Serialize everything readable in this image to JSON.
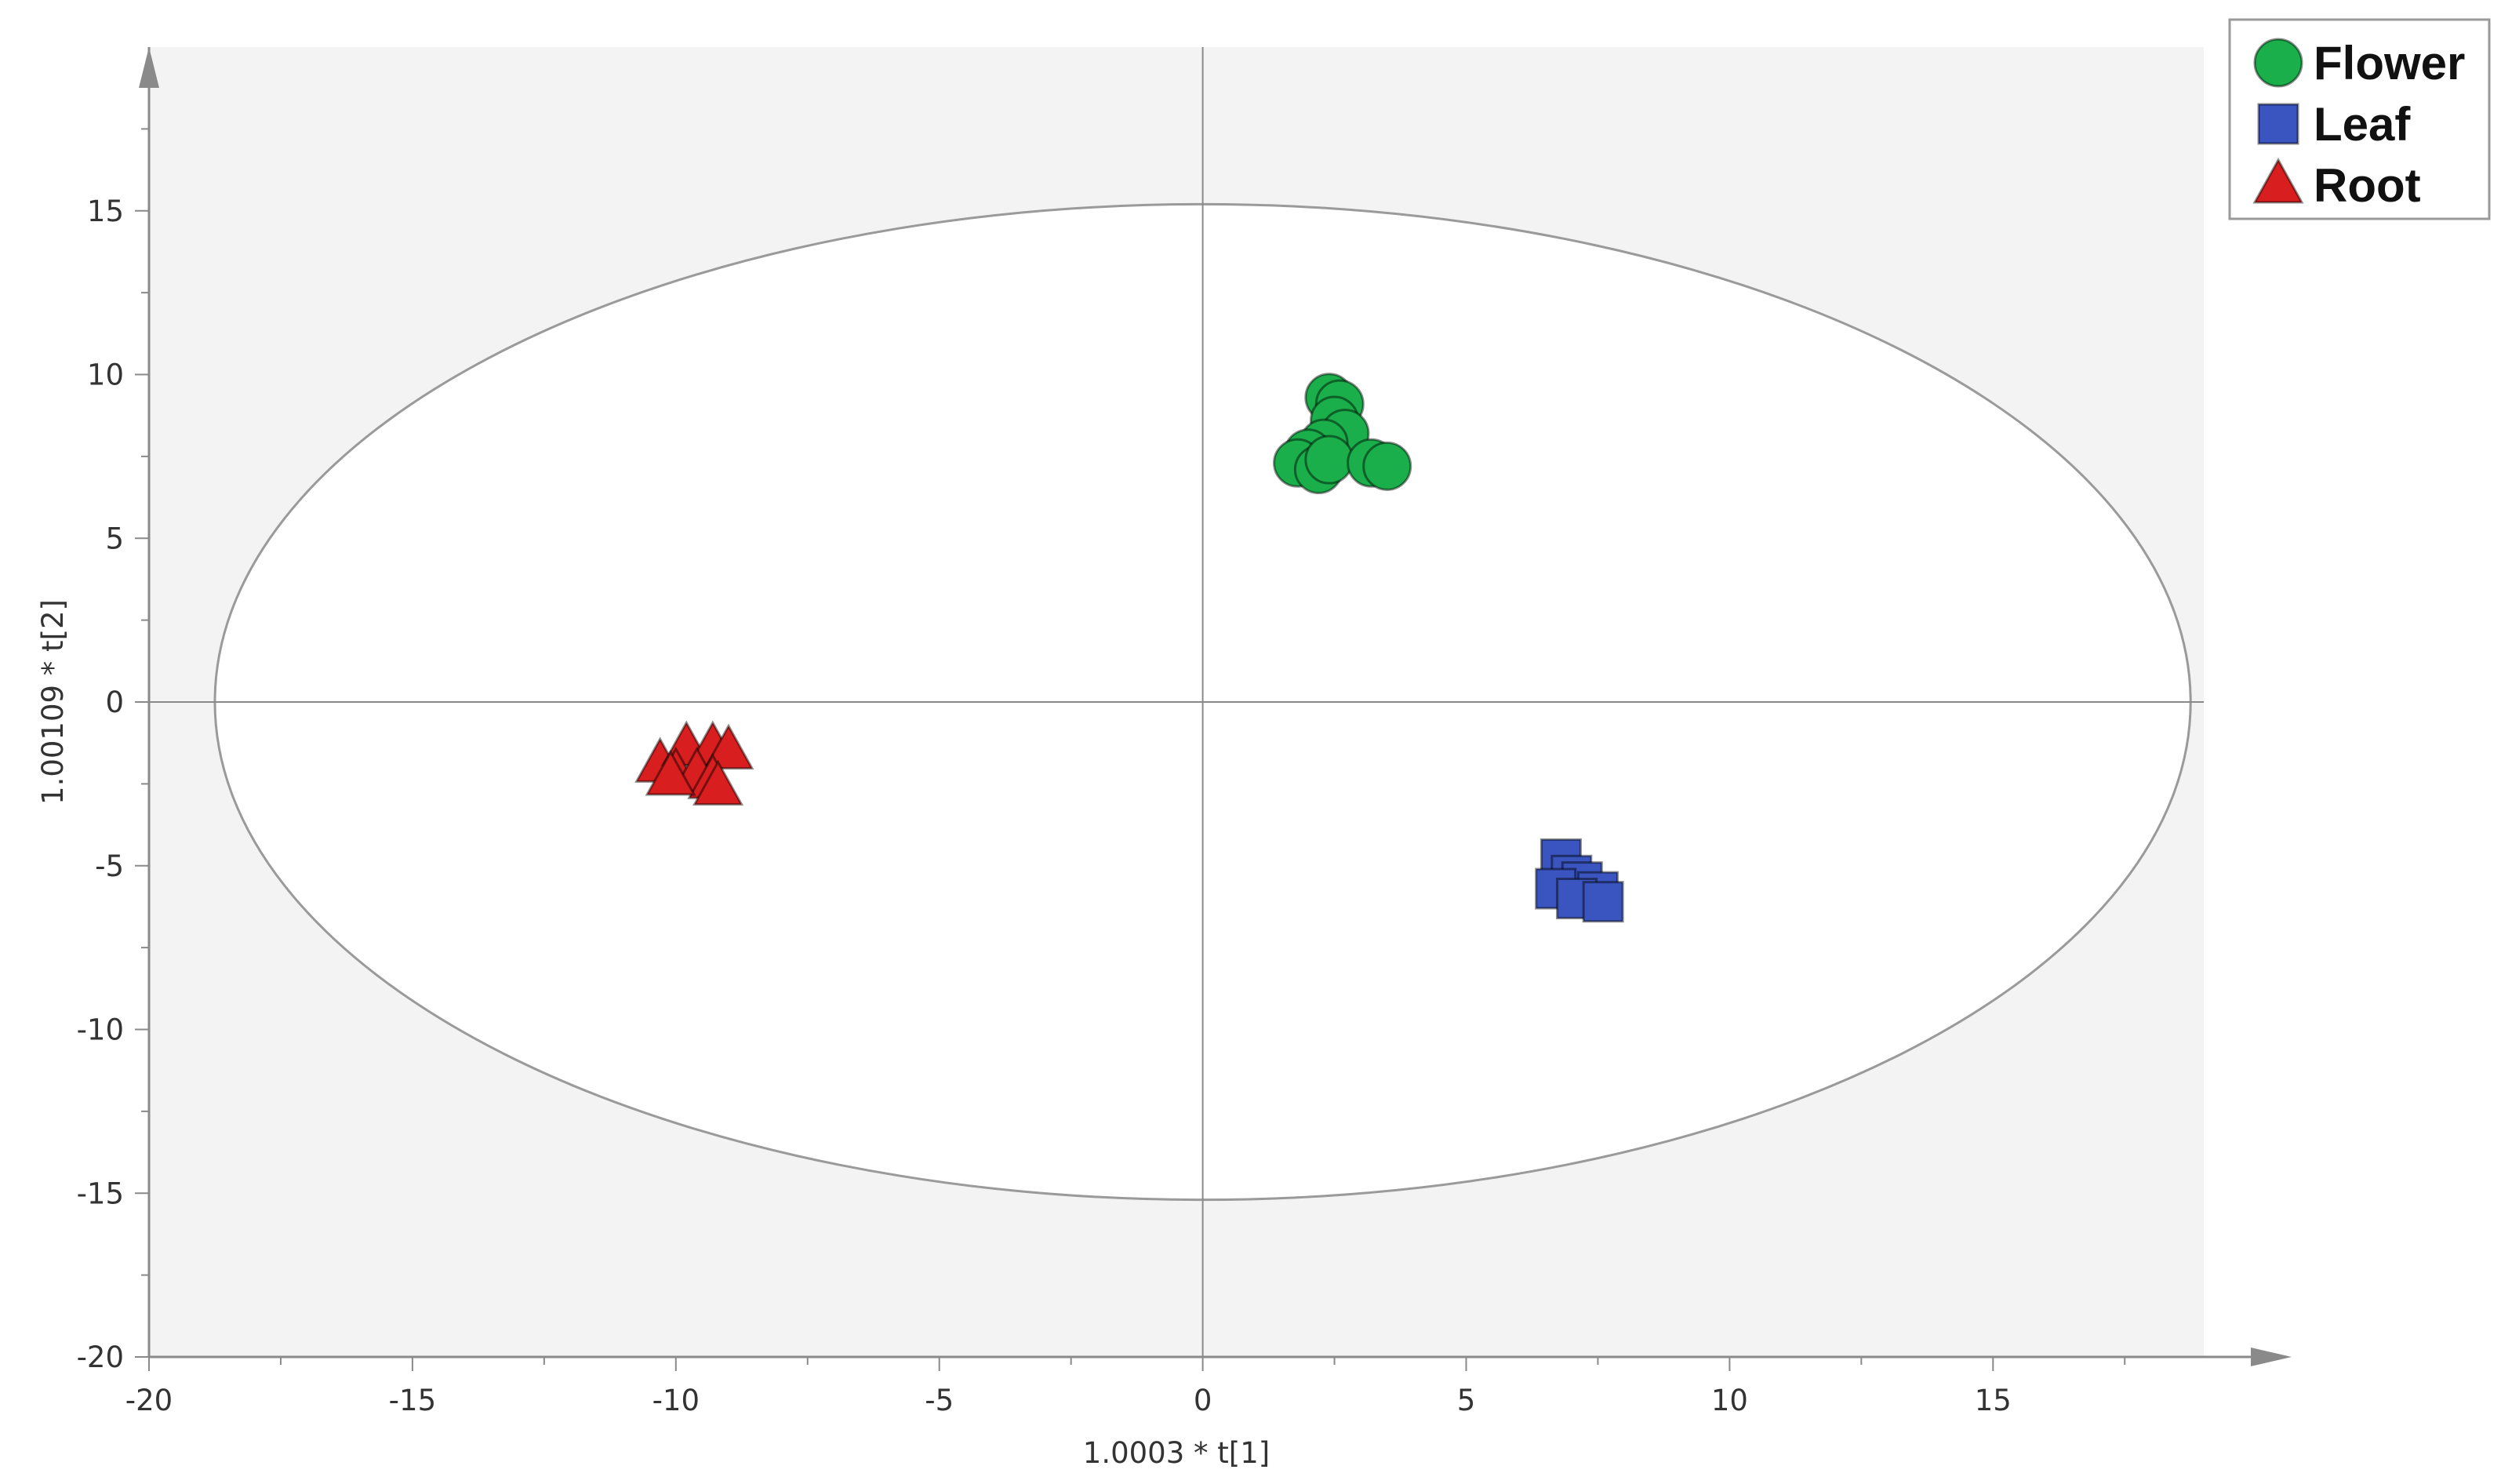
{
  "chart_data": {
    "type": "scatter",
    "title": "",
    "xlabel": "1.0003 * t[1]",
    "ylabel": "1.00109 * t[2]",
    "xlim": [
      -20,
      19
    ],
    "ylim": [
      -20,
      20
    ],
    "xticks": [
      -20,
      -15,
      -10,
      -5,
      0,
      5,
      10,
      15
    ],
    "yticks": [
      -20,
      -15,
      -10,
      -5,
      0,
      5,
      10,
      15
    ],
    "grid": false,
    "legend_position": "top-right",
    "confidence_ellipse": {
      "center": [
        0,
        0
      ],
      "semi_axis_x": 18.75,
      "semi_axis_y": 15.2
    },
    "series": [
      {
        "name": "Flower",
        "marker": "circle",
        "color": "#1aaf4b",
        "points": [
          [
            2.4,
            9.3
          ],
          [
            2.6,
            9.1
          ],
          [
            2.5,
            8.6
          ],
          [
            2.7,
            8.2
          ],
          [
            2.3,
            7.9
          ],
          [
            2.0,
            7.6
          ],
          [
            1.8,
            7.3
          ],
          [
            2.2,
            7.1
          ],
          [
            2.4,
            7.4
          ],
          [
            3.2,
            7.3
          ],
          [
            3.5,
            7.2
          ]
        ]
      },
      {
        "name": "Leaf",
        "marker": "square",
        "color": "#3a55c0",
        "points": [
          [
            6.8,
            -4.8
          ],
          [
            7.0,
            -5.3
          ],
          [
            7.2,
            -5.5
          ],
          [
            7.5,
            -5.8
          ],
          [
            6.7,
            -5.7
          ],
          [
            7.1,
            -6.0
          ],
          [
            7.6,
            -6.1
          ]
        ]
      },
      {
        "name": "Root",
        "marker": "triangle",
        "color": "#d81e1e",
        "points": [
          [
            -10.3,
            -1.9
          ],
          [
            -9.8,
            -1.4
          ],
          [
            -9.3,
            -1.4
          ],
          [
            -9.0,
            -1.5
          ],
          [
            -10.0,
            -2.2
          ],
          [
            -9.6,
            -2.2
          ],
          [
            -9.3,
            -2.4
          ],
          [
            -9.2,
            -2.6
          ],
          [
            -10.1,
            -2.3
          ]
        ]
      }
    ]
  }
}
